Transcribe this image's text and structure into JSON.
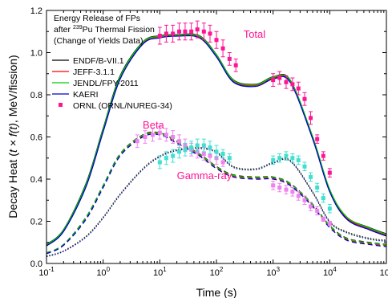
{
  "chart_data": {
    "type": "line",
    "title_lines": [
      "Energy Release of FPs",
      "Pu Thermal Fission",
      "(Change of Yields Data)"
    ],
    "title_prefix": "after ",
    "title_superscript": "239",
    "xlabel": "Time (s)",
    "ylabel_prefix": "Decay Heat (",
    "ylabel_italic": "t × f(t)",
    "ylabel_suffix": ", MeV/fission)",
    "xscale": "log",
    "xlim": [
      0.1,
      100000
    ],
    "ylim": [
      0.0,
      1.2
    ],
    "x_ticks": [
      {
        "value": 0.1,
        "base": "10",
        "exp": "-1"
      },
      {
        "value": 1,
        "base": "10",
        "exp": "0"
      },
      {
        "value": 10,
        "base": "10",
        "exp": "1"
      },
      {
        "value": 100,
        "base": "10",
        "exp": "2"
      },
      {
        "value": 1000,
        "base": "10",
        "exp": "3"
      },
      {
        "value": 10000,
        "base": "10",
        "exp": "4"
      },
      {
        "value": 100000,
        "base": "10",
        "exp": "5"
      }
    ],
    "y_ticks": [
      "0.0",
      "0.2",
      "0.4",
      "0.6",
      "0.8",
      "1.0",
      "1.2"
    ],
    "legend_position": "top-left",
    "annotations": [
      {
        "text": "Total",
        "x": 300,
        "y": 1.07,
        "color": "#ff1493"
      },
      {
        "text": "Beta",
        "x": 5,
        "y": 0.64,
        "color": "#ff1493"
      },
      {
        "text": "Gamma-ray",
        "x": 20,
        "y": 0.4,
        "color": "#ff1493"
      }
    ],
    "x": [
      0.1,
      0.2,
      0.5,
      1,
      2,
      5,
      10,
      20,
      50,
      100,
      200,
      500,
      1000,
      2000,
      5000,
      10000,
      20000,
      50000,
      100000
    ],
    "series": [
      {
        "name": "ENDF/B-VII.1",
        "group": "total",
        "color": "#000000",
        "values": [
          0.09,
          0.16,
          0.38,
          0.64,
          0.89,
          1.05,
          1.08,
          1.085,
          1.08,
          0.99,
          0.87,
          0.85,
          0.885,
          0.87,
          0.6,
          0.35,
          0.22,
          0.17,
          0.14
        ]
      },
      {
        "name": "JEFF-3.1.1",
        "group": "total",
        "color": "#ff0000",
        "values": [
          0.085,
          0.155,
          0.37,
          0.63,
          0.88,
          1.045,
          1.075,
          1.082,
          1.075,
          0.985,
          0.865,
          0.845,
          0.88,
          0.865,
          0.595,
          0.345,
          0.215,
          0.165,
          0.135
        ]
      },
      {
        "name": "JENDL/FPY-2011",
        "group": "total",
        "color": "#00cc00",
        "values": [
          0.088,
          0.158,
          0.375,
          0.635,
          0.885,
          1.048,
          1.078,
          1.083,
          1.078,
          0.988,
          0.868,
          0.848,
          0.883,
          0.868,
          0.6,
          0.35,
          0.22,
          0.168,
          0.138
        ]
      },
      {
        "name": "KAERI",
        "group": "total",
        "color": "#0000cc",
        "values": [
          0.083,
          0.152,
          0.365,
          0.625,
          0.875,
          1.04,
          1.07,
          1.078,
          1.07,
          0.98,
          0.86,
          0.84,
          0.875,
          0.86,
          0.59,
          0.34,
          0.21,
          0.16,
          0.13
        ]
      },
      {
        "name": "ENDF/B-VII.1 beta",
        "group": "beta",
        "color": "#000000",
        "values": [
          0.05,
          0.09,
          0.22,
          0.37,
          0.52,
          0.61,
          0.62,
          0.58,
          0.52,
          0.46,
          0.42,
          0.41,
          0.41,
          0.38,
          0.28,
          0.18,
          0.12,
          0.1,
          0.09
        ]
      },
      {
        "name": "JEFF-3.1.1 beta",
        "group": "beta",
        "color": "#ff0000",
        "values": [
          0.048,
          0.088,
          0.215,
          0.365,
          0.515,
          0.605,
          0.615,
          0.575,
          0.515,
          0.455,
          0.415,
          0.405,
          0.405,
          0.375,
          0.275,
          0.175,
          0.115,
          0.095,
          0.085
        ]
      },
      {
        "name": "JENDL/FPY-2011 beta",
        "group": "beta",
        "color": "#00cc00",
        "values": [
          0.049,
          0.089,
          0.218,
          0.368,
          0.518,
          0.608,
          0.618,
          0.578,
          0.518,
          0.458,
          0.418,
          0.408,
          0.408,
          0.378,
          0.278,
          0.178,
          0.118,
          0.098,
          0.088
        ]
      },
      {
        "name": "KAERI beta",
        "group": "beta",
        "color": "#0000cc",
        "values": [
          0.046,
          0.086,
          0.21,
          0.36,
          0.51,
          0.6,
          0.61,
          0.57,
          0.51,
          0.45,
          0.41,
          0.4,
          0.4,
          0.37,
          0.27,
          0.17,
          0.11,
          0.09,
          0.08
        ]
      },
      {
        "name": "ENDF/B-VII.1 gamma",
        "group": "gamma",
        "color": "#000000",
        "values": [
          0.035,
          0.06,
          0.13,
          0.22,
          0.33,
          0.45,
          0.51,
          0.54,
          0.55,
          0.53,
          0.46,
          0.45,
          0.48,
          0.49,
          0.34,
          0.2,
          0.15,
          0.12,
          0.11
        ]
      },
      {
        "name": "JEFF-3.1.1 gamma",
        "group": "gamma",
        "color": "#ff0000",
        "values": [
          0.034,
          0.059,
          0.128,
          0.218,
          0.328,
          0.448,
          0.508,
          0.538,
          0.548,
          0.528,
          0.458,
          0.448,
          0.478,
          0.488,
          0.338,
          0.198,
          0.148,
          0.118,
          0.108
        ]
      },
      {
        "name": "JENDL/FPY-2011 gamma",
        "group": "gamma",
        "color": "#00cc00",
        "values": [
          0.033,
          0.058,
          0.127,
          0.217,
          0.327,
          0.447,
          0.507,
          0.537,
          0.547,
          0.527,
          0.457,
          0.447,
          0.477,
          0.487,
          0.337,
          0.197,
          0.147,
          0.117,
          0.107
        ]
      },
      {
        "name": "KAERI gamma",
        "group": "gamma",
        "color": "#0000cc",
        "values": [
          0.032,
          0.057,
          0.125,
          0.215,
          0.325,
          0.445,
          0.505,
          0.535,
          0.545,
          0.525,
          0.455,
          0.445,
          0.475,
          0.485,
          0.335,
          0.195,
          0.145,
          0.115,
          0.105
        ]
      }
    ],
    "measured": [
      {
        "name": "ORNL (ORNL/NUREG-34)",
        "group": "total",
        "color": "#ff1493",
        "points": [
          {
            "x": 10,
            "y": 1.08,
            "err": 0.04
          },
          {
            "x": 13,
            "y": 1.09,
            "err": 0.04
          },
          {
            "x": 17,
            "y": 1.09,
            "err": 0.04
          },
          {
            "x": 22,
            "y": 1.1,
            "err": 0.04
          },
          {
            "x": 28,
            "y": 1.1,
            "err": 0.04
          },
          {
            "x": 36,
            "y": 1.1,
            "err": 0.04
          },
          {
            "x": 46,
            "y": 1.11,
            "err": 0.04
          },
          {
            "x": 60,
            "y": 1.1,
            "err": 0.04
          },
          {
            "x": 77,
            "y": 1.09,
            "err": 0.04
          },
          {
            "x": 100,
            "y": 1.06,
            "err": 0.04
          },
          {
            "x": 130,
            "y": 1.02,
            "err": 0.04
          },
          {
            "x": 170,
            "y": 0.97,
            "err": 0.03
          },
          {
            "x": 220,
            "y": 0.94,
            "err": 0.03
          },
          {
            "x": 1000,
            "y": 0.87,
            "err": 0.03
          },
          {
            "x": 1300,
            "y": 0.88,
            "err": 0.03
          },
          {
            "x": 1700,
            "y": 0.86,
            "err": 0.03
          },
          {
            "x": 2200,
            "y": 0.85,
            "err": 0.03
          },
          {
            "x": 2800,
            "y": 0.83,
            "err": 0.03
          },
          {
            "x": 3600,
            "y": 0.78,
            "err": 0.03
          },
          {
            "x": 4600,
            "y": 0.69,
            "err": 0.03
          },
          {
            "x": 6000,
            "y": 0.59,
            "err": 0.02
          },
          {
            "x": 7700,
            "y": 0.51,
            "err": 0.02
          },
          {
            "x": 10000,
            "y": 0.43,
            "err": 0.02
          }
        ]
      },
      {
        "name": "ORNL beta",
        "group": "beta",
        "color": "#ee82ee",
        "points": [
          {
            "x": 4,
            "y": 0.58,
            "err": 0.03
          },
          {
            "x": 5.5,
            "y": 0.6,
            "err": 0.03
          },
          {
            "x": 7.5,
            "y": 0.61,
            "err": 0.03
          },
          {
            "x": 10,
            "y": 0.62,
            "err": 0.03
          },
          {
            "x": 13,
            "y": 0.61,
            "err": 0.03
          },
          {
            "x": 17,
            "y": 0.6,
            "err": 0.03
          },
          {
            "x": 22,
            "y": 0.58,
            "err": 0.03
          },
          {
            "x": 28,
            "y": 0.56,
            "err": 0.03
          },
          {
            "x": 36,
            "y": 0.54,
            "err": 0.03
          },
          {
            "x": 46,
            "y": 0.53,
            "err": 0.03
          },
          {
            "x": 60,
            "y": 0.52,
            "err": 0.03
          },
          {
            "x": 77,
            "y": 0.51,
            "err": 0.03
          },
          {
            "x": 100,
            "y": 0.5,
            "err": 0.03
          },
          {
            "x": 130,
            "y": 0.48,
            "err": 0.02
          },
          {
            "x": 1000,
            "y": 0.37,
            "err": 0.02
          },
          {
            "x": 1300,
            "y": 0.36,
            "err": 0.02
          },
          {
            "x": 1700,
            "y": 0.35,
            "err": 0.02
          },
          {
            "x": 2200,
            "y": 0.34,
            "err": 0.02
          },
          {
            "x": 2800,
            "y": 0.32,
            "err": 0.02
          },
          {
            "x": 3600,
            "y": 0.3,
            "err": 0.02
          },
          {
            "x": 4600,
            "y": 0.27,
            "err": 0.02
          },
          {
            "x": 6000,
            "y": 0.25,
            "err": 0.02
          },
          {
            "x": 7700,
            "y": 0.21,
            "err": 0.01
          },
          {
            "x": 10000,
            "y": 0.19,
            "err": 0.01
          }
        ]
      },
      {
        "name": "ORNL gamma",
        "group": "gamma",
        "color": "#40e0d0",
        "points": [
          {
            "x": 10,
            "y": 0.48,
            "err": 0.03
          },
          {
            "x": 13,
            "y": 0.5,
            "err": 0.03
          },
          {
            "x": 17,
            "y": 0.51,
            "err": 0.03
          },
          {
            "x": 22,
            "y": 0.53,
            "err": 0.03
          },
          {
            "x": 28,
            "y": 0.54,
            "err": 0.03
          },
          {
            "x": 36,
            "y": 0.55,
            "err": 0.03
          },
          {
            "x": 46,
            "y": 0.56,
            "err": 0.03
          },
          {
            "x": 60,
            "y": 0.56,
            "err": 0.03
          },
          {
            "x": 77,
            "y": 0.55,
            "err": 0.03
          },
          {
            "x": 100,
            "y": 0.53,
            "err": 0.03
          },
          {
            "x": 130,
            "y": 0.52,
            "err": 0.02
          },
          {
            "x": 170,
            "y": 0.5,
            "err": 0.02
          },
          {
            "x": 1000,
            "y": 0.49,
            "err": 0.02
          },
          {
            "x": 1300,
            "y": 0.5,
            "err": 0.02
          },
          {
            "x": 1700,
            "y": 0.51,
            "err": 0.02
          },
          {
            "x": 2200,
            "y": 0.5,
            "err": 0.02
          },
          {
            "x": 2800,
            "y": 0.49,
            "err": 0.02
          },
          {
            "x": 3600,
            "y": 0.46,
            "err": 0.02
          },
          {
            "x": 4600,
            "y": 0.41,
            "err": 0.02
          },
          {
            "x": 6000,
            "y": 0.36,
            "err": 0.02
          },
          {
            "x": 7700,
            "y": 0.31,
            "err": 0.02
          },
          {
            "x": 10000,
            "y": 0.26,
            "err": 0.02
          }
        ]
      }
    ]
  }
}
